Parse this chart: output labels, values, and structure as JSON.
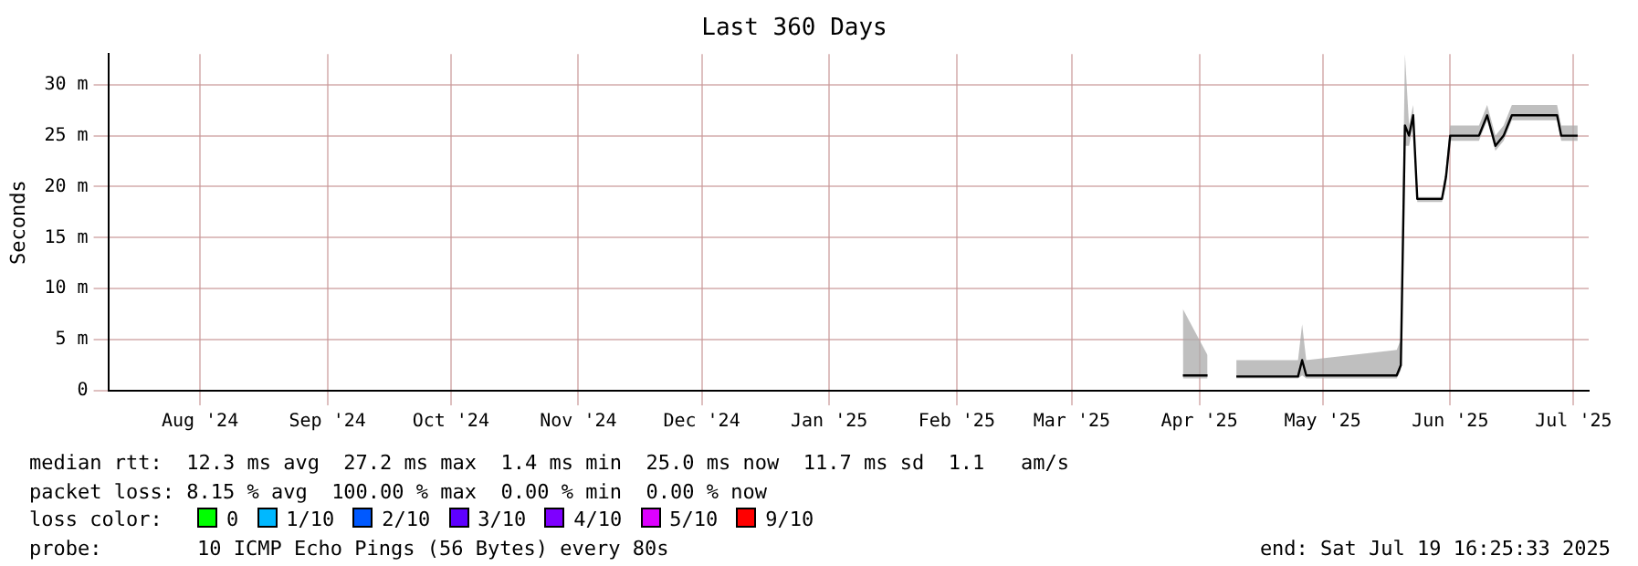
{
  "chart_data": {
    "type": "line",
    "title": "Last 360 Days",
    "ylabel": "Seconds",
    "xlim": [
      "2024-07-24T16:25",
      "2025-07-19T16:25"
    ],
    "xticks": [
      {
        "value": "2024-08-16",
        "label": "Aug '24"
      },
      {
        "value": "2024-09-16",
        "label": "Sep '24"
      },
      {
        "value": "2024-10-16",
        "label": "Oct '24"
      },
      {
        "value": "2024-11-16",
        "label": "Nov '24"
      },
      {
        "value": "2024-12-16",
        "label": "Dec '24"
      },
      {
        "value": "2025-01-16",
        "label": "Jan '25"
      },
      {
        "value": "2025-02-16",
        "label": "Feb '25"
      },
      {
        "value": "2025-03-16",
        "label": "Mar '25"
      },
      {
        "value": "2025-04-16",
        "label": "Apr '25"
      },
      {
        "value": "2025-05-16",
        "label": "May '25"
      },
      {
        "value": "2025-06-16",
        "label": "Jun '25"
      },
      {
        "value": "2025-07-16",
        "label": "Jul '25"
      }
    ],
    "ylim": [
      0,
      33
    ],
    "yticks": [
      0,
      {
        "value": 5,
        "label": "5 m"
      },
      {
        "value": 10,
        "label": "10 m"
      },
      {
        "value": 15,
        "label": "15 m"
      },
      {
        "value": 20,
        "label": "20 m"
      },
      {
        "value": 25,
        "label": "25 m"
      },
      {
        "value": 30,
        "label": "30 m"
      }
    ],
    "grid": true,
    "legend": false,
    "line_style": "solid",
    "marker": "none",
    "series": [
      {
        "color": "#000000",
        "x": [
          "2025-04-12",
          "2025-04-18",
          "2025-04-21",
          "2025-04-25",
          "2025-05-10",
          "2025-05-11",
          "2025-05-12",
          "2025-06-03",
          "2025-06-04",
          "2025-06-05",
          "2025-06-06",
          "2025-06-07",
          "2025-06-08",
          "2025-06-14",
          "2025-06-15",
          "2025-06-16",
          "2025-06-23",
          "2025-06-25",
          "2025-06-27",
          "2025-06-29",
          "2025-07-01",
          "2025-07-12",
          "2025-07-13",
          "2025-07-17"
        ],
        "values": [
          1.5,
          1.5,
          null,
          1.4,
          1.4,
          3,
          1.5,
          1.5,
          2.5,
          26,
          25,
          27,
          18.8,
          18.8,
          21,
          25,
          25,
          27,
          24,
          25,
          27,
          27,
          25,
          25
        ],
        "lower": [
          1.2,
          1.2,
          null,
          1.2,
          1.2,
          1.5,
          1.2,
          1.2,
          2,
          24,
          24,
          26,
          18.5,
          18.5,
          20,
          24.5,
          24.5,
          26.5,
          23.5,
          24.5,
          26.5,
          26.5,
          24.5,
          24.5
        ],
        "upper": [
          8,
          3.5,
          null,
          3,
          3,
          6.5,
          3,
          4,
          5,
          33,
          26,
          28,
          19,
          19,
          22,
          26,
          26,
          28,
          25,
          26,
          28,
          28,
          26,
          26
        ]
      }
    ],
    "annotations": [
      "median rtt:  12.3 ms avg  27.2 ms max  1.4 ms min  25.0 ms now  11.7 ms sd  1.1   am/s",
      "packet loss: 8.15 % avg  100.00 % max  0.00 % min  0.00 % now",
      "loss color:",
      "0",
      "1/10",
      "2/10",
      "3/10",
      "4/10",
      "5/10",
      "9/10",
      "probe:",
      "10 ICMP Echo Pings (56 Bytes) every 80s",
      "end: Sat Jul 19 16:25:33 2025"
    ]
  }
}
